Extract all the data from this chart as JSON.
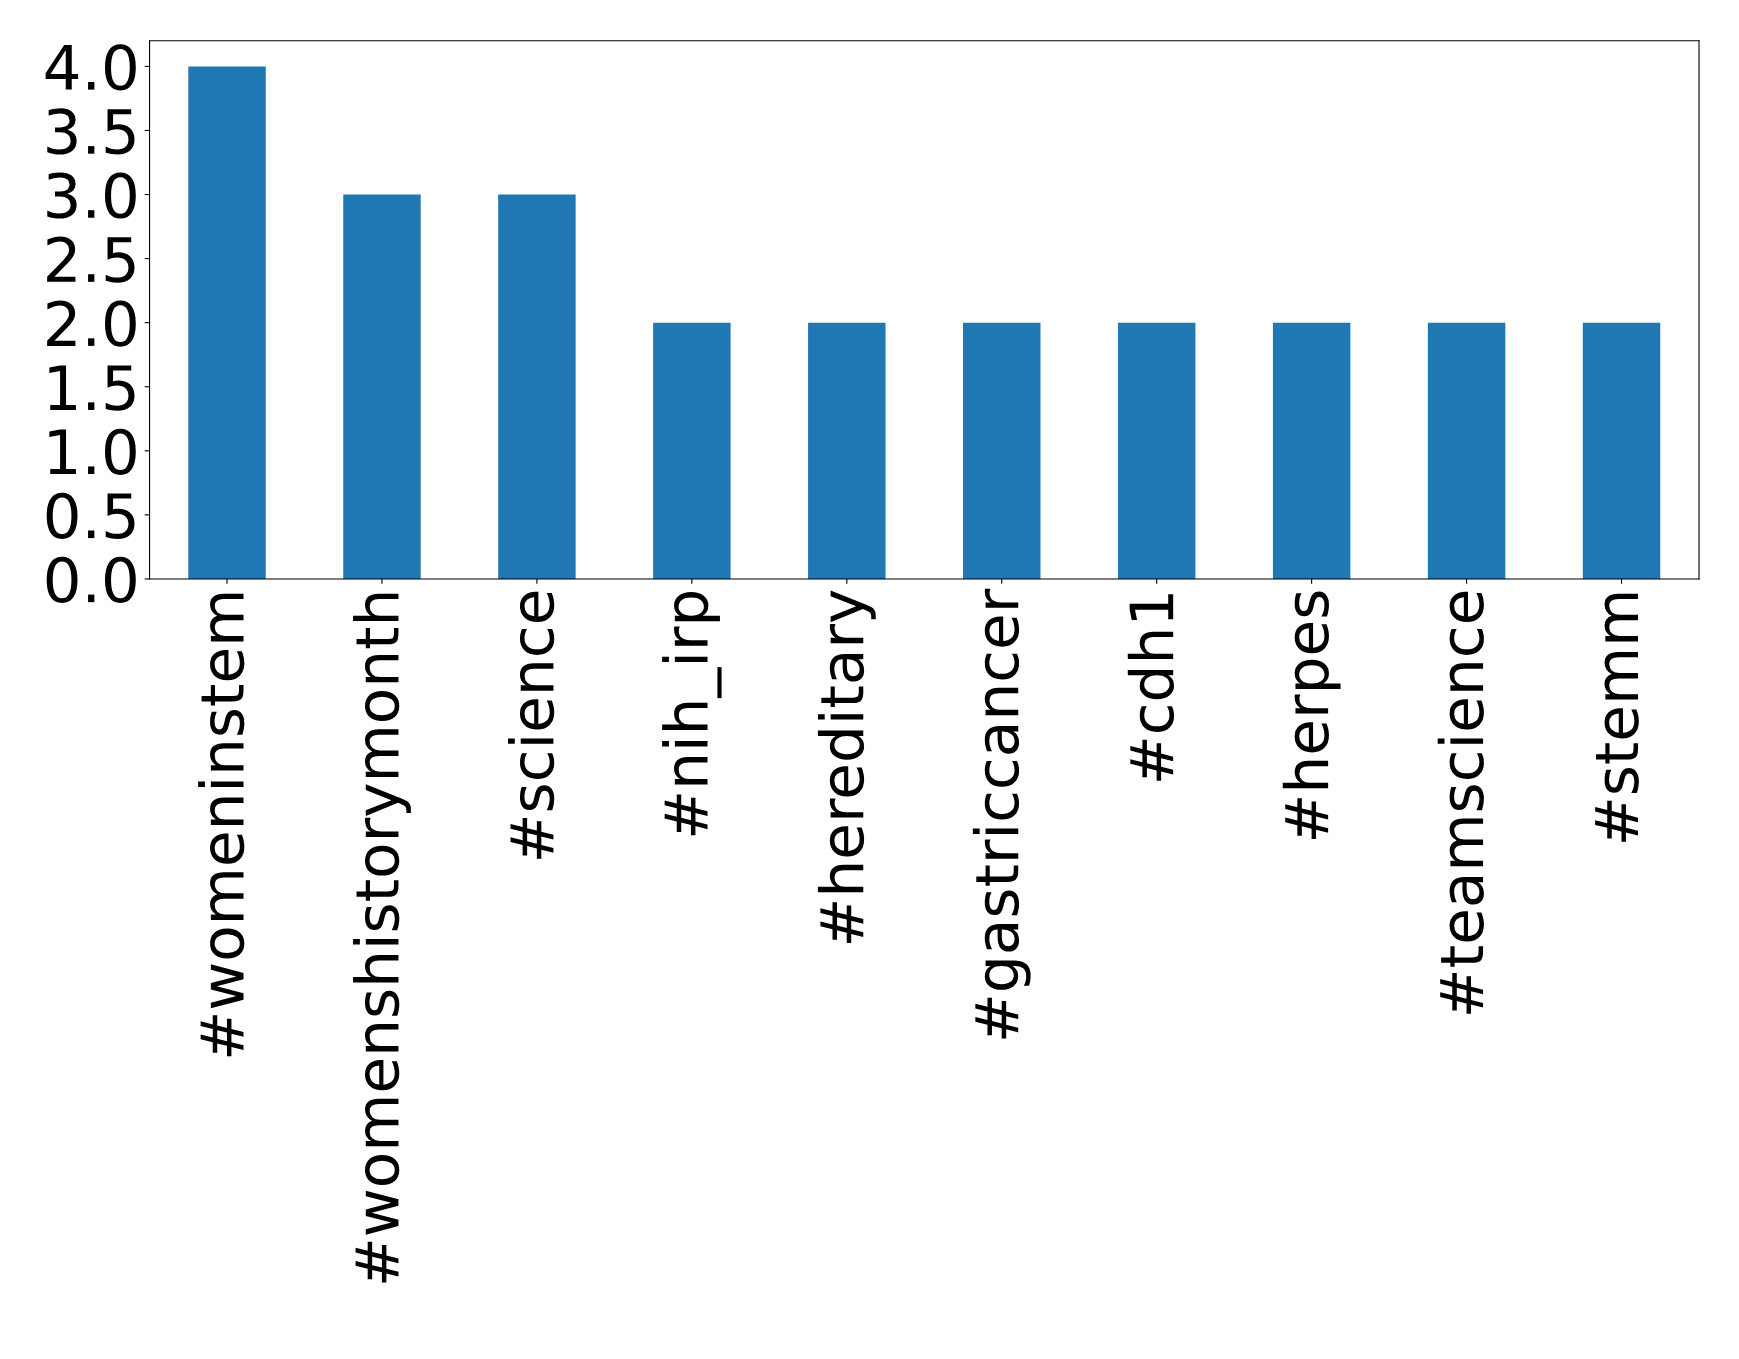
{
  "chart_data": {
    "type": "bar",
    "categories": [
      "#womeninstem",
      "#womenshistorymonth",
      "#science",
      "#nih_irp",
      "#hereditary",
      "#gastriccancer",
      "#cdh1",
      "#herpes",
      "#teamscience",
      "#stemm"
    ],
    "values": [
      4,
      3,
      3,
      2,
      2,
      2,
      2,
      2,
      2,
      2
    ],
    "color": "#1f77b4",
    "ylim": [
      0,
      4.2
    ],
    "yticks": [
      {
        "value": 0,
        "label": "0.0"
      },
      {
        "value": 0.5,
        "label": "0.5"
      },
      {
        "value": 1,
        "label": "1.0"
      },
      {
        "value": 1.5,
        "label": "1.5"
      },
      {
        "value": 2,
        "label": "2.0"
      },
      {
        "value": 2.5,
        "label": "2.5"
      },
      {
        "value": 3,
        "label": "3.0"
      },
      {
        "value": 3.5,
        "label": "3.5"
      },
      {
        "value": 4,
        "label": "4.0"
      }
    ],
    "grid": false
  }
}
